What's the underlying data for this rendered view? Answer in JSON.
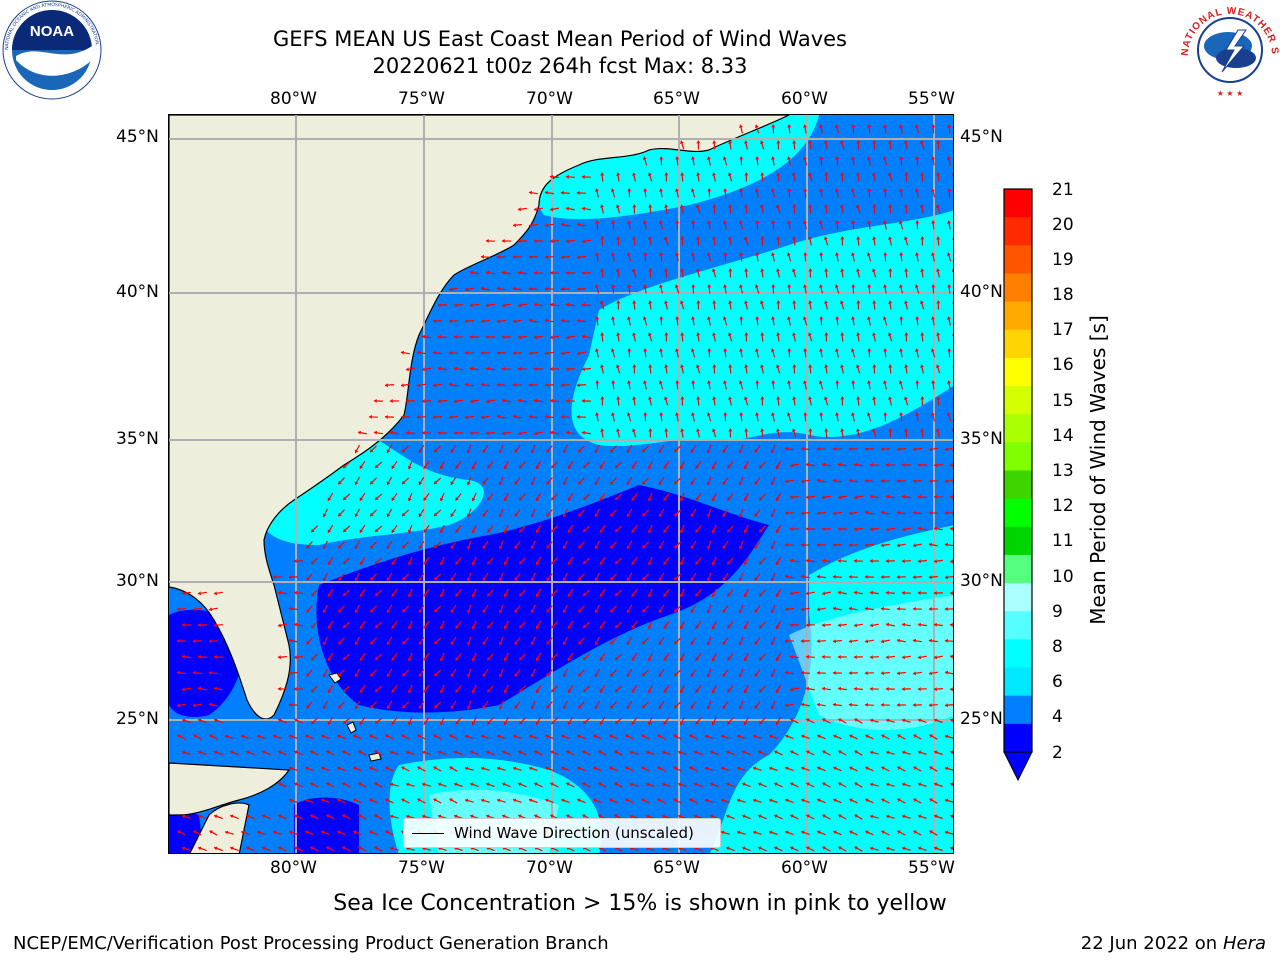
{
  "header": {
    "title": "GEFS MEAN US East Coast Mean Period of Wind Waves",
    "subtitle": "20220621 t00z 264h fcst   Max: 8.33"
  },
  "logos": {
    "left": {
      "text": "NOAA",
      "ring_text": "NATIONAL OCEANIC AND ATMOSPHERIC ADMINISTRATION · U.S. DEPARTMENT OF COMMERCE"
    },
    "right": {
      "ring_text": "NATIONAL WEATHER SERVICE"
    }
  },
  "map": {
    "lon_ticks": [
      "80°W",
      "75°W",
      "70°W",
      "65°W",
      "60°W",
      "55°W"
    ],
    "lat_ticks": [
      "45°N",
      "40°N",
      "35°N",
      "30°N",
      "25°N"
    ],
    "legend": "Wind Wave Direction (unscaled)",
    "land_color": "#eeeedc",
    "arrow_color": "#ff0000",
    "grid_color": "#b0b0b0"
  },
  "colorbar": {
    "label": "Mean Period of Wind Waves [s]",
    "ticks": [
      "21",
      "20",
      "19",
      "18",
      "17",
      "16",
      "15",
      "14",
      "13",
      "12",
      "11",
      "10",
      "9",
      "8",
      "6",
      "4",
      "2"
    ],
    "colors": [
      "#ff0000",
      "#ff2a00",
      "#ff5500",
      "#ff7f00",
      "#ffaa00",
      "#ffd400",
      "#ffff00",
      "#d4ff00",
      "#aaff00",
      "#7fff00",
      "#3ed400",
      "#00ff00",
      "#00d400",
      "#55ff80",
      "#aaffff",
      "#55ffff",
      "#00ffff",
      "#00e8ff",
      "#0080ff",
      "#0000ff"
    ]
  },
  "note": "Sea Ice Concentration > 15% is shown in pink to yellow",
  "footer": {
    "left": "NCEP/EMC/Verification Post Processing Product Generation Branch",
    "right_date": "22 Jun 2022 on",
    "right_machine": "Hera"
  }
}
